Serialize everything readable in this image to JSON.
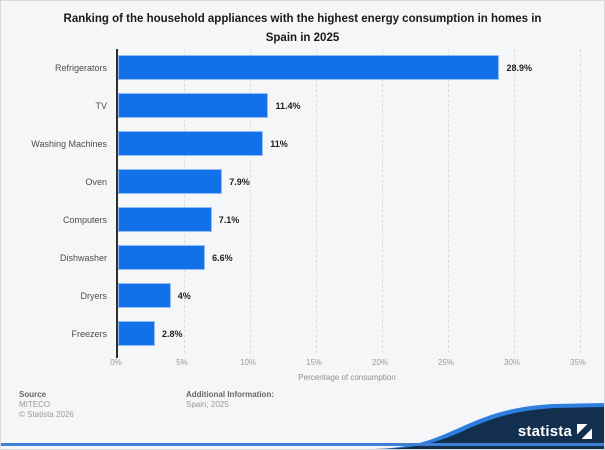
{
  "title": "Ranking of the household appliances with the highest energy consumption in homes in Spain in 2025",
  "chart_data": {
    "type": "bar",
    "orientation": "horizontal",
    "title": "Ranking of the household appliances with the highest energy consumption in homes in Spain in 2025",
    "categories": [
      "Refrigerators",
      "TV",
      "Washing Machines",
      "Oven",
      "Computers",
      "Dishwasher",
      "Dryers",
      "Freezers"
    ],
    "values": [
      28.9,
      11.4,
      11,
      7.9,
      7.1,
      6.6,
      4,
      2.8
    ],
    "value_labels": [
      "28.9%",
      "11.4%",
      "11%",
      "7.9%",
      "7.1%",
      "6.6%",
      "4%",
      "2.8%"
    ],
    "xlabel": "Percentage of consumption",
    "xlim": [
      0,
      35
    ],
    "x_tick_labels": [
      "0%",
      "5%",
      "10%",
      "15%",
      "20%",
      "25%",
      "30%",
      "35%"
    ],
    "grid": "vertical-dashed",
    "legend": "none",
    "bar_color": "#1270e8"
  },
  "footer": {
    "source_label": "Source",
    "source_value": "MITECO",
    "copyright": "© Statista 2026",
    "additional_label": "Additional Information:",
    "additional_value": "Spain; 2025"
  },
  "branding": {
    "logo_text": "statista",
    "navy": "#12304e",
    "light_blue": "#2e7de0",
    "bottom_line": "#3f7fd4"
  }
}
